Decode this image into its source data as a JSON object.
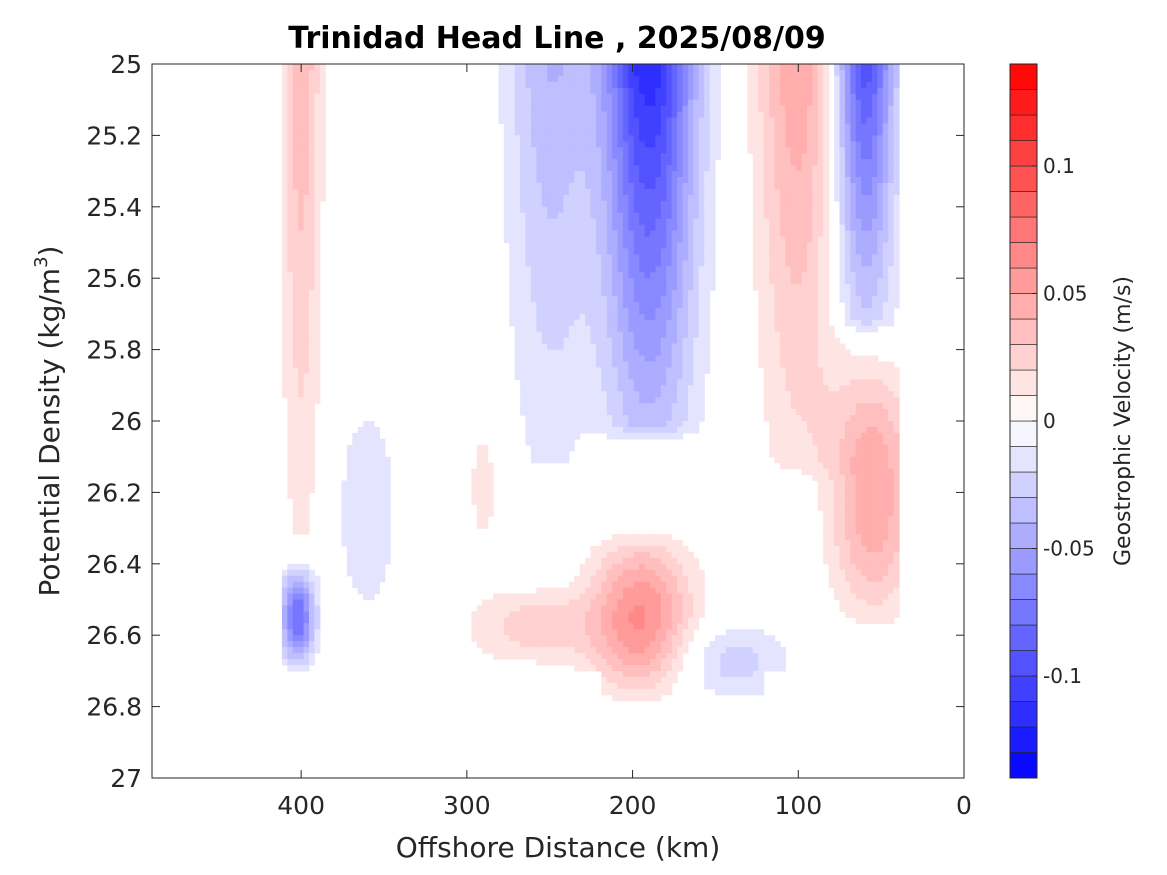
{
  "chart_data": {
    "type": "heatmap",
    "title": "Trinidad Head Line , 2025/08/09",
    "xlabel": "Offshore Distance (km)",
    "ylabel": "Potential Density (kg/m",
    "ylabel_sup": "3",
    "ylabel_suffix": ")",
    "colorbar_label": "Geostrophic Velocity (m/s)",
    "xlim": [
      490,
      0
    ],
    "x_reversed": true,
    "ylim": [
      25,
      27
    ],
    "y_reversed": true,
    "xticks": [
      400,
      300,
      200,
      100,
      0
    ],
    "xtick_labels": [
      "400",
      "300",
      "200",
      "100",
      "0"
    ],
    "yticks": [
      25,
      25.2,
      25.4,
      25.6,
      25.8,
      26,
      26.2,
      26.4,
      26.6,
      26.8,
      27
    ],
    "ytick_labels": [
      "25",
      "25.2",
      "25.4",
      "25.6",
      "25.8",
      "26",
      "26.2",
      "26.4",
      "26.6",
      "26.8",
      "27"
    ],
    "clim": [
      -0.14,
      0.14
    ],
    "colorbar_levels": 28,
    "colorbar_ticks": [
      0.1,
      0.05,
      0,
      -0.05,
      -0.1
    ],
    "colorbar_tick_labels": [
      "0.1",
      "0.05",
      "0",
      "-0.05",
      "-0.1"
    ],
    "colormap": {
      "negative": "#0000ff",
      "zero": "#ffffff",
      "positive": "#ff0000"
    },
    "grid": false,
    "features": [
      {
        "x": 400,
        "y0": 25.0,
        "y1": 26.3,
        "halfwidth": 12,
        "value": 0.04
      },
      {
        "x": 402,
        "y0": 26.4,
        "y1": 26.7,
        "halfwidth": 10,
        "value": -0.08
      },
      {
        "x": 360,
        "y0": 25.9,
        "y1": 26.6,
        "halfwidth": 18,
        "value": -0.02
      },
      {
        "x": 250,
        "y0": 25.0,
        "y1": 26.1,
        "halfwidth": 26,
        "value": -0.04
      },
      {
        "x": 190,
        "y0": 25.0,
        "y1": 26.0,
        "halfwidth": 28,
        "value": -0.12
      },
      {
        "x": 100,
        "y0": 25.0,
        "y1": 26.1,
        "halfwidth": 25,
        "value": 0.05
      },
      {
        "x": 60,
        "y0": 25.0,
        "y1": 25.7,
        "halfwidth": 18,
        "value": -0.1
      },
      {
        "x": 55,
        "y0": 25.8,
        "y1": 26.6,
        "halfwidth": 25,
        "value": 0.05
      },
      {
        "x": 195,
        "y0": 26.3,
        "y1": 26.8,
        "halfwidth": 30,
        "value": 0.06
      },
      {
        "x": 260,
        "y0": 26.45,
        "y1": 26.7,
        "halfwidth": 40,
        "value": 0.025
      },
      {
        "x": 140,
        "y0": 26.55,
        "y1": 26.8,
        "halfwidth": 35,
        "value": -0.025
      },
      {
        "x": 290,
        "y0": 25.95,
        "y1": 26.4,
        "halfwidth": 10,
        "value": 0.015
      }
    ],
    "data_mask": [
      {
        "x0": 410,
        "x1": 40,
        "y0": 25.0,
        "y1": 26.6
      },
      {
        "x0": 410,
        "x1": 80,
        "y0": 26.6,
        "y1": 26.7
      },
      {
        "x0": 220,
        "x1": 120,
        "y0": 26.7,
        "y1": 26.8
      }
    ]
  }
}
